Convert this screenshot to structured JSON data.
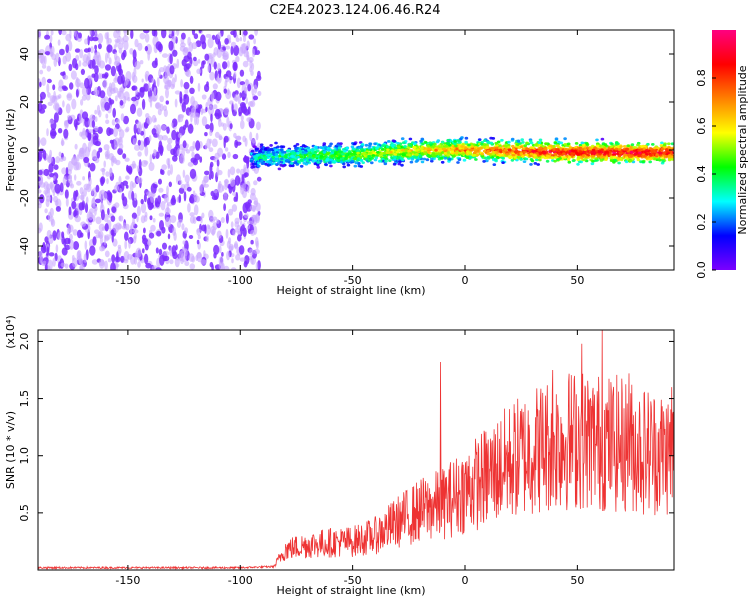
{
  "figure": {
    "title": "C2E4.2023.124.06.46.R24"
  },
  "chart_data": [
    {
      "type": "heatmap",
      "xlabel": "Height of straight line (km)",
      "ylabel": "Frequency (Hz)",
      "xlim": [
        -190,
        93
      ],
      "ylim": [
        -50,
        50
      ],
      "xticks": [
        -150,
        -100,
        -50,
        0,
        50
      ],
      "yticks": [
        -40,
        -20,
        0,
        20,
        40
      ],
      "grid": false,
      "colorbar": {
        "label": "Normalized spectral amplitude",
        "range": [
          0.0,
          1.0
        ],
        "ticks": [
          0.0,
          0.2,
          0.4,
          0.6,
          0.8
        ],
        "colormap": [
          "#7b00ff",
          "#0000ff",
          "#00ffff",
          "#00ff00",
          "#ffff00",
          "#ff8000",
          "#ff0000",
          "#ff0080"
        ],
        "position": "right"
      },
      "regions": [
        {
          "x_range": [
            -190,
            -95
          ],
          "frequency_range": [
            -50,
            50
          ],
          "amplitude": "low",
          "pattern": "noise"
        },
        {
          "x_range": [
            -95,
            93
          ],
          "frequency_center": [
            [
              -95,
              -3
            ],
            [
              -50,
              -2
            ],
            [
              -20,
              0
            ],
            [
              0,
              0
            ],
            [
              50,
              -1
            ],
            [
              93,
              -1
            ]
          ],
          "half_width_hz": 3,
          "amplitude": [
            0.3,
            0.9
          ]
        }
      ],
      "colors": {
        "noise": "#7b2cff",
        "noise_light": "#c9a8ff",
        "signal_high": "#ff1a1a"
      }
    },
    {
      "type": "line",
      "xlabel": "Height of straight line (km)",
      "ylabel": "SNR (10 * v/v)",
      "y_multiplier": "(x10⁴)",
      "xlim": [
        -190,
        93
      ],
      "ylim": [
        0,
        2.1
      ],
      "xticks": [
        -150,
        -100,
        -50,
        0,
        50
      ],
      "yticks": [
        0.5,
        1.0,
        1.5,
        2.0
      ],
      "grid": false,
      "series": [
        {
          "color": "#ee3333",
          "trend": {
            "x": [
              -190,
              -100,
              -85,
              -80,
              -70,
              -60,
              -50,
              -40,
              -30,
              -20,
              -10,
              0,
              10,
              20,
              30,
              40,
              50,
              60,
              70,
              80,
              93
            ],
            "y": [
              0.02,
              0.02,
              0.03,
              0.18,
              0.22,
              0.24,
              0.25,
              0.3,
              0.42,
              0.52,
              0.58,
              0.7,
              0.82,
              0.95,
              1.05,
              1.12,
              1.15,
              1.12,
              1.1,
              1.05,
              1.02
            ]
          },
          "peaks": [
            {
              "x": -11,
              "y": 1.82
            },
            {
              "x": 39,
              "y": 1.75
            },
            {
              "x": 52,
              "y": 1.98
            },
            {
              "x": 61,
              "y": 2.1
            },
            {
              "x": 73,
              "y": 1.72
            },
            {
              "x": 92,
              "y": 1.6
            }
          ]
        }
      ]
    }
  ]
}
